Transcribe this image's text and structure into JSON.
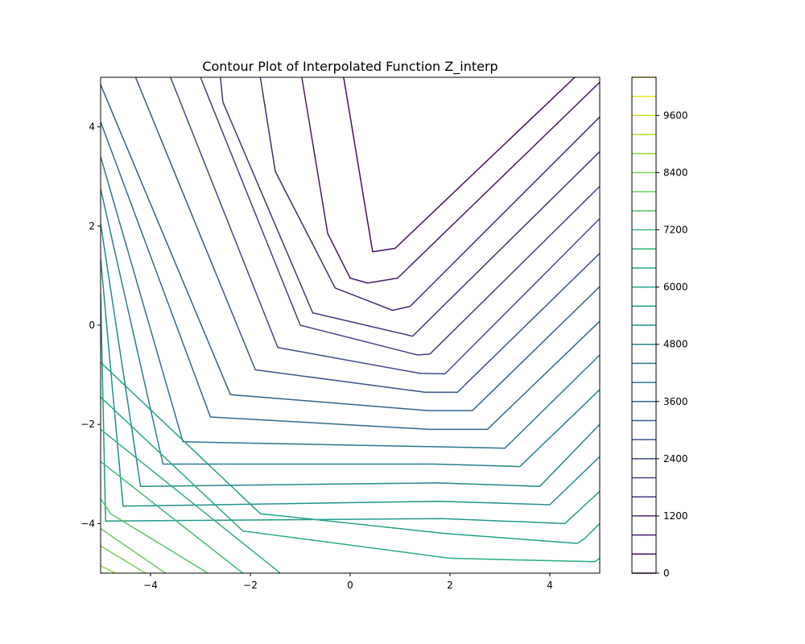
{
  "chart_data": {
    "type": "contour",
    "title": "Contour Plot of Interpolated Function Z_interp",
    "xlabel": "",
    "ylabel": "",
    "xlim": [
      -5,
      5
    ],
    "ylim": [
      -5,
      5
    ],
    "x_ticks": [
      -4,
      -2,
      0,
      2,
      4
    ],
    "x_tick_labels": [
      "−4",
      "−2",
      "0",
      "2",
      "4"
    ],
    "y_ticks": [
      -4,
      -2,
      0,
      2,
      4
    ],
    "y_tick_labels": [
      "−4",
      "−2",
      "0",
      "2",
      "4"
    ],
    "grid": false,
    "colormap": "viridis",
    "levels": [
      0,
      400,
      800,
      1200,
      1600,
      2000,
      2400,
      2800,
      3200,
      3600,
      4000,
      4400,
      4800,
      5200,
      5600,
      6000,
      6400,
      6800,
      7200,
      7600,
      8000,
      8400,
      8800,
      9200,
      9600,
      10000,
      10400
    ],
    "colorbar": {
      "ticks": [
        0,
        1200,
        2400,
        3600,
        4800,
        6000,
        7200,
        8400,
        9600
      ],
      "tick_labels": [
        "0",
        "1200",
        "2400",
        "3600",
        "4800",
        "6000",
        "7200",
        "8400",
        "9600"
      ],
      "range": [
        0,
        10400
      ]
    },
    "contours": [
      {
        "level": 400,
        "points": [
          [
            -0.13,
            5
          ],
          [
            0.45,
            1.48
          ],
          [
            0.9,
            1.55
          ],
          [
            4.5,
            5
          ]
        ]
      },
      {
        "level": 800,
        "points": [
          [
            -0.97,
            5
          ],
          [
            -0.45,
            1.85
          ],
          [
            0.0,
            0.95
          ],
          [
            0.35,
            0.85
          ],
          [
            0.95,
            0.95
          ],
          [
            5,
            4.9
          ]
        ]
      },
      {
        "level": 1200,
        "points": [
          [
            -1.8,
            5
          ],
          [
            -1.5,
            3.1
          ],
          [
            -0.3,
            0.75
          ],
          [
            0.85,
            0.3
          ],
          [
            1.2,
            0.38
          ],
          [
            5,
            4.2
          ]
        ]
      },
      {
        "level": 1600,
        "points": [
          [
            -2.6,
            5
          ],
          [
            -2.55,
            4.5
          ],
          [
            -0.75,
            0.25
          ],
          [
            1.25,
            -0.22
          ],
          [
            5,
            3.5
          ]
        ]
      },
      {
        "level": 2000,
        "points": [
          [
            -3.0,
            5
          ],
          [
            -1.0,
            0.0
          ],
          [
            1.35,
            -0.6
          ],
          [
            1.6,
            -0.58
          ],
          [
            5,
            2.8
          ]
        ]
      },
      {
        "level": 2400,
        "points": [
          [
            -3.6,
            5
          ],
          [
            -1.45,
            -0.45
          ],
          [
            1.4,
            -0.97
          ],
          [
            1.9,
            -0.98
          ],
          [
            5,
            2.15
          ]
        ]
      },
      {
        "level": 2800,
        "points": [
          [
            -4.3,
            5
          ],
          [
            -1.9,
            -0.9
          ],
          [
            1.5,
            -1.35
          ],
          [
            2.15,
            -1.35
          ],
          [
            5,
            1.45
          ]
        ]
      },
      {
        "level": 3200,
        "points": [
          [
            -5,
            4.85
          ],
          [
            -2.4,
            -1.4
          ],
          [
            1.55,
            -1.72
          ],
          [
            2.45,
            -1.72
          ],
          [
            5,
            0.78
          ]
        ]
      },
      {
        "level": 3600,
        "points": [
          [
            -5,
            4.1
          ],
          [
            -2.8,
            -1.85
          ],
          [
            1.6,
            -2.1
          ],
          [
            2.75,
            -2.1
          ],
          [
            5,
            0.08
          ]
        ]
      },
      {
        "level": 4000,
        "points": [
          [
            -5,
            3.4
          ],
          [
            -3.35,
            -2.35
          ],
          [
            1.65,
            -2.45
          ],
          [
            3.1,
            -2.48
          ],
          [
            5,
            -0.6
          ]
        ]
      },
      {
        "level": 4400,
        "points": [
          [
            -5,
            2.75
          ],
          [
            -3.75,
            -2.8
          ],
          [
            1.7,
            -2.8
          ],
          [
            3.4,
            -2.85
          ],
          [
            5,
            -1.3
          ]
        ]
      },
      {
        "level": 4800,
        "points": [
          [
            -5,
            2.05
          ],
          [
            -4.2,
            -3.25
          ],
          [
            1.75,
            -3.18
          ],
          [
            3.8,
            -3.25
          ],
          [
            5,
            -2.0
          ]
        ]
      },
      {
        "level": 5200,
        "points": [
          [
            -5,
            1.35
          ],
          [
            -4.55,
            -3.65
          ],
          [
            1.8,
            -3.55
          ],
          [
            4.0,
            -3.62
          ],
          [
            5,
            -2.65
          ]
        ]
      },
      {
        "level": 5600,
        "points": [
          [
            -5,
            0.65
          ],
          [
            -4.9,
            -3.95
          ],
          [
            1.85,
            -3.9
          ],
          [
            4.3,
            -4.0
          ],
          [
            5,
            -3.35
          ]
        ]
      },
      {
        "level": 6000,
        "points": [
          [
            -5,
            -0.75
          ],
          [
            -1.8,
            -3.8
          ],
          [
            1.9,
            -4.2
          ],
          [
            4.55,
            -4.4
          ],
          [
            4.7,
            -4.3
          ],
          [
            5,
            -4.0
          ]
        ]
      },
      {
        "level": 6400,
        "points": [
          [
            -5,
            -1.45
          ],
          [
            -2.15,
            -4.15
          ],
          [
            2.0,
            -4.7
          ],
          [
            4.9,
            -4.77
          ],
          [
            5,
            -4.7
          ]
        ]
      },
      {
        "level": 6800,
        "points": [
          [
            -5,
            -2.1
          ],
          [
            -1.4,
            -5
          ]
        ]
      },
      {
        "level": 7200,
        "points": [
          [
            -5,
            -2.75
          ],
          [
            -2.15,
            -5
          ]
        ]
      },
      {
        "level": 7600,
        "points": [
          [
            -5,
            -3.5
          ],
          [
            -4.8,
            -3.8
          ],
          [
            -2.85,
            -5
          ]
        ]
      },
      {
        "level": 8000,
        "points": [
          [
            -5,
            -4.1
          ],
          [
            -3.7,
            -5
          ]
        ]
      },
      {
        "level": 8400,
        "points": [
          [
            -5,
            -4.45
          ],
          [
            -4.1,
            -5
          ]
        ]
      },
      {
        "level": 8800,
        "points": [
          [
            -5,
            -4.85
          ],
          [
            -4.7,
            -5
          ]
        ]
      },
      {
        "level": 9200,
        "points": [
          [
            -5,
            -5
          ],
          [
            -4.95,
            -5
          ]
        ]
      },
      {
        "level": 6800,
        "points": [
          [
            0.3,
            -5
          ],
          [
            0.32,
            -5
          ]
        ]
      },
      {
        "level": 6000,
        "points": [
          [
            -0.5,
            -5
          ],
          [
            -0.48,
            -5
          ]
        ]
      },
      {
        "level": 6400,
        "points": [
          [
            -0.2,
            -5
          ],
          [
            -0.18,
            -5
          ]
        ]
      }
    ]
  }
}
